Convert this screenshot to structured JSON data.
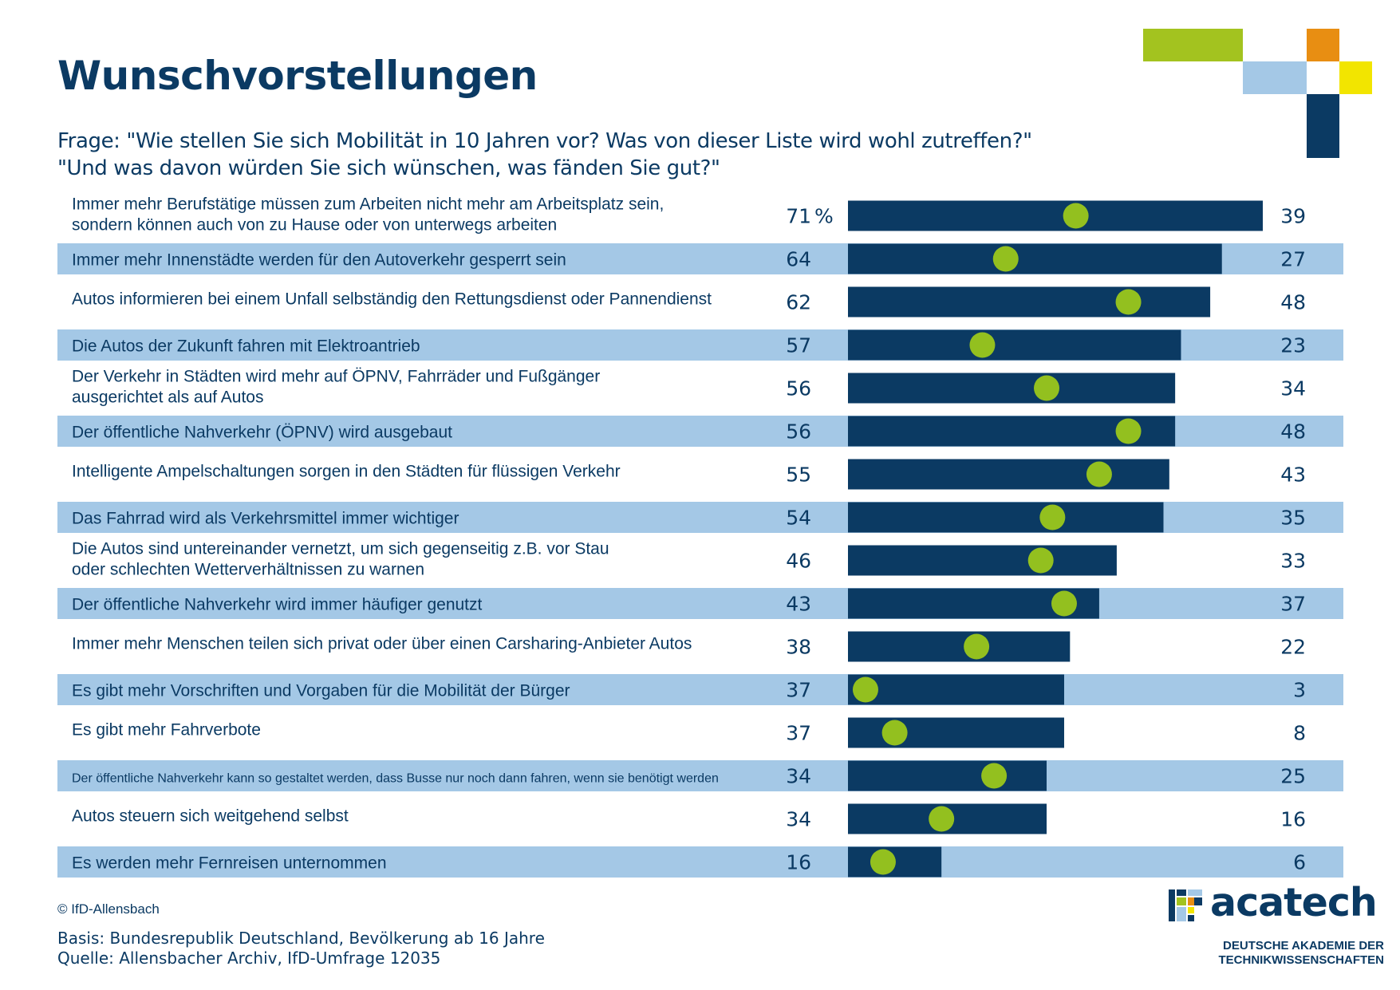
{
  "title": "Wunschvorstellungen",
  "question": {
    "line1": "Frage: \"Wie stellen Sie sich Mobilität in 10 Jahren vor? Was von dieser Liste wird wohl zutreffen?\"",
    "line2": "\"Und was davon würden Sie sich wünschen, was fänden Sie gut?\""
  },
  "colors": {
    "bar": "#0b3a63",
    "dot": "#93c01f",
    "stripe": "#a4c8e6",
    "text": "#0b3a63"
  },
  "chart_data": {
    "type": "bar",
    "orientation": "horizontal",
    "first_value_suffix": " %",
    "xlim": [
      0,
      71
    ],
    "categories": [
      [
        "Immer mehr Berufstätige müssen zum Arbeiten nicht mehr am Arbeitsplatz sein,",
        "sondern können auch von zu Hause oder von unterwegs arbeiten"
      ],
      [
        "Immer mehr Innenstädte werden für den Autoverkehr gesperrt sein"
      ],
      [
        "Autos informieren bei einem Unfall selbständig den Rettungsdienst oder Pannendienst"
      ],
      [
        "Die Autos der Zukunft fahren mit Elektroantrieb"
      ],
      [
        "Der Verkehr in Städten wird mehr auf ÖPNV, Fahrräder und Fußgänger",
        "ausgerichtet als auf Autos"
      ],
      [
        "Der öffentliche Nahverkehr (ÖPNV) wird ausgebaut"
      ],
      [
        "Intelligente Ampelschaltungen sorgen in den Städten für flüssigen Verkehr"
      ],
      [
        "Das Fahrrad wird als Verkehrsmittel immer wichtiger"
      ],
      [
        "Die Autos sind untereinander vernetzt, um sich gegenseitig z.B. vor Stau",
        "oder schlechten Wetterverhältnissen zu warnen"
      ],
      [
        "Der öffentliche Nahverkehr wird immer häufiger genutzt"
      ],
      [
        "Immer mehr Menschen teilen sich privat oder über einen Carsharing-Anbieter Autos"
      ],
      [
        "Es gibt mehr Vorschriften und Vorgaben für die Mobilität der Bürger"
      ],
      [
        "Es gibt mehr Fahrverbote"
      ],
      [
        "Der öffentliche Nahverkehr kann so gestaltet werden, dass Busse nur noch dann fahren, wenn sie benötigt werden"
      ],
      [
        "Autos steuern sich weitgehend selbst"
      ],
      [
        "Es werden mehr Fernreisen unternommen"
      ]
    ],
    "series": [
      {
        "values": [
          71,
          64,
          62,
          57,
          56,
          56,
          55,
          54,
          46,
          43,
          38,
          37,
          37,
          34,
          34,
          16
        ]
      },
      {
        "values": [
          39,
          27,
          48,
          23,
          34,
          48,
          43,
          35,
          33,
          37,
          22,
          3,
          8,
          25,
          16,
          6
        ]
      }
    ]
  },
  "footer": {
    "copyright": "© IfD-Allensbach",
    "basis": "Basis: Bundesrepublik Deutschland, Bevölkerung ab 16 Jahre",
    "source": "Quelle: Allensbacher Archiv, IfD-Umfrage 12035"
  },
  "logo": {
    "name": "acatech",
    "line1": "DEUTSCHE AKADEMIE DER",
    "line2": "TECHNIKWISSENSCHAFTEN"
  }
}
